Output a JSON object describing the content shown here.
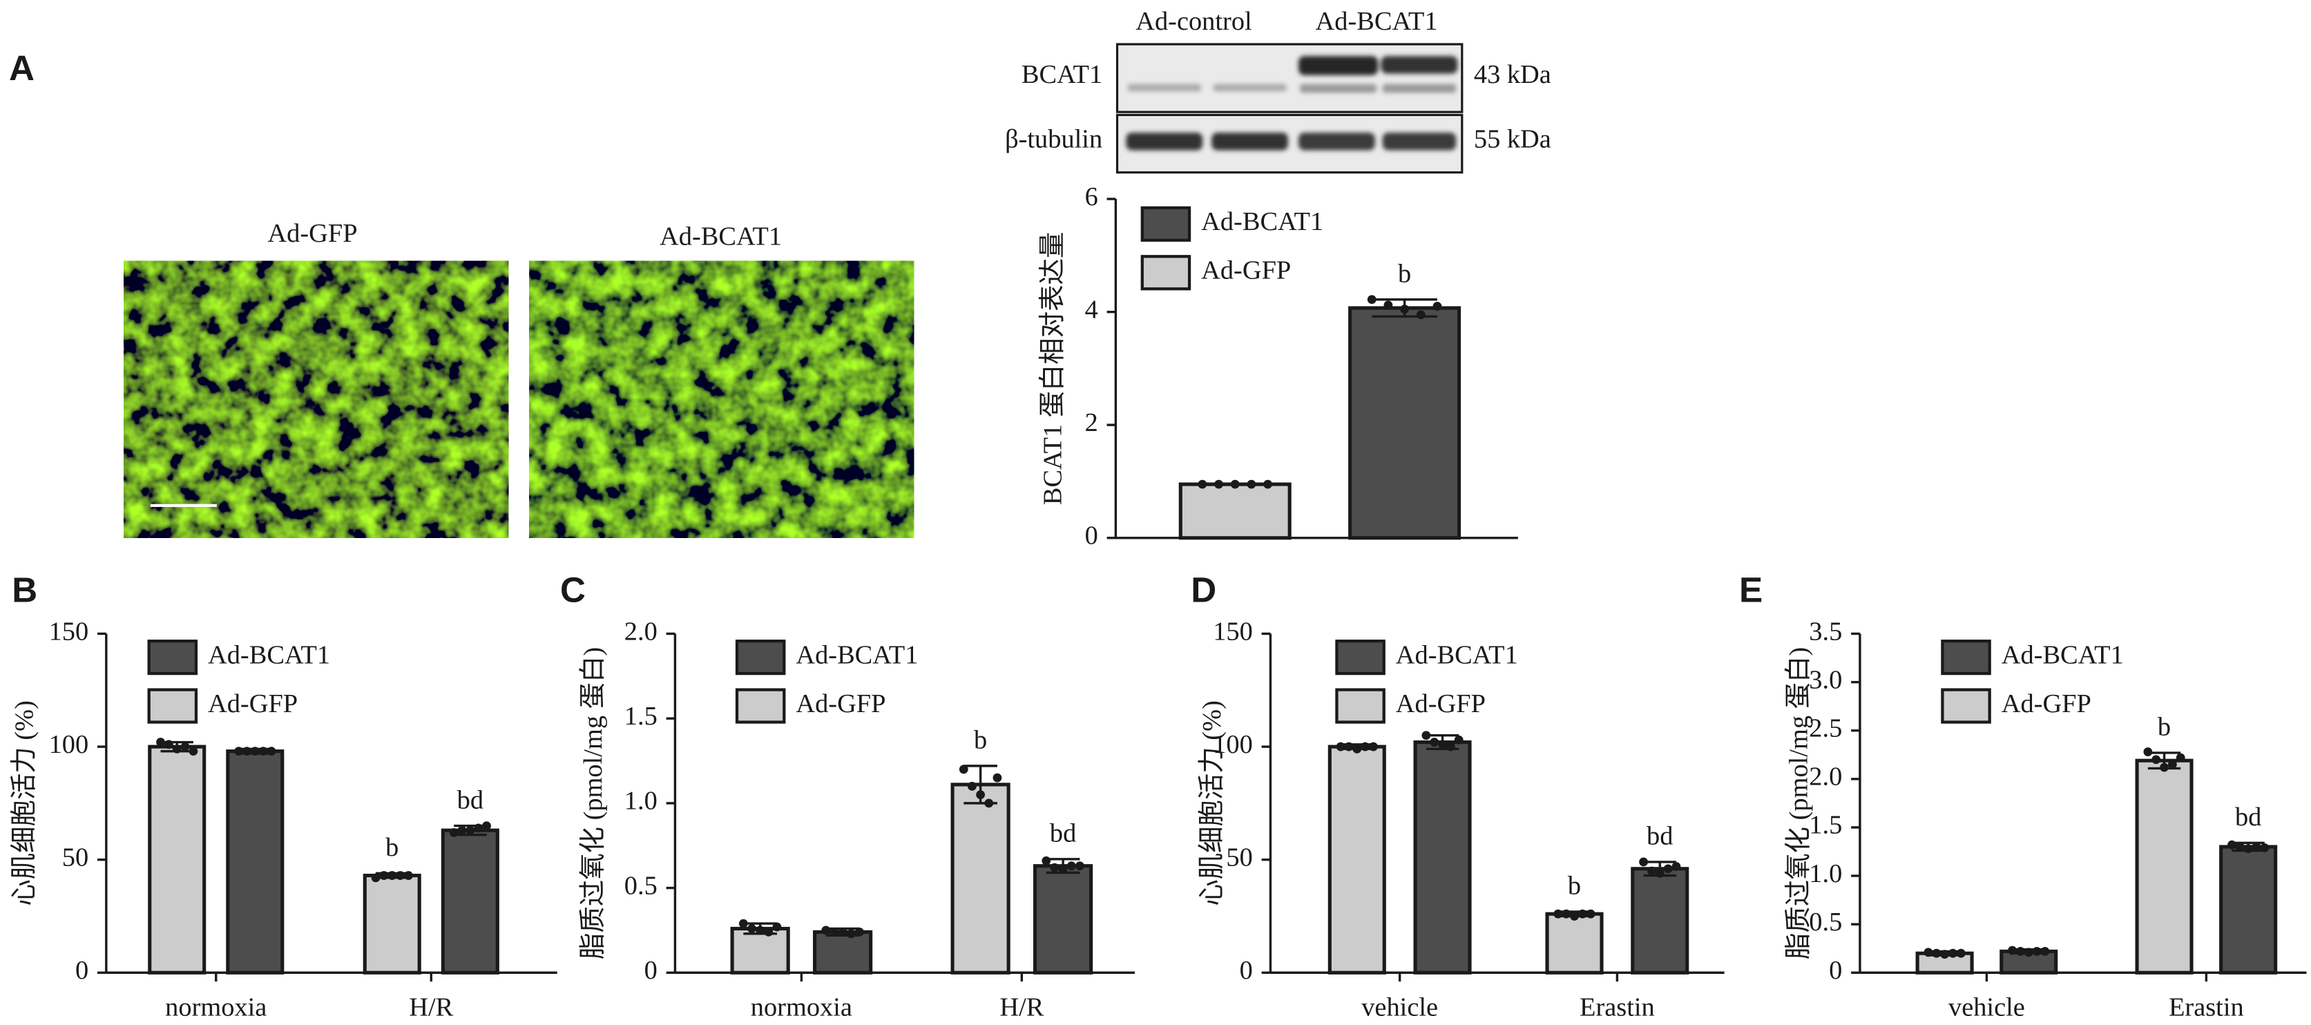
{
  "panel_a": {
    "label": "A",
    "images": [
      {
        "title": "Ad-GFP"
      },
      {
        "title": "Ad-BCAT1"
      }
    ],
    "blot": {
      "groups": [
        "Ad-control",
        "Ad-BCAT1"
      ],
      "rows": [
        {
          "protein": "BCAT1",
          "size": "43 kDa"
        },
        {
          "protein": "β-tubulin",
          "size": "55 kDa"
        }
      ]
    }
  },
  "chart_data": [
    {
      "type": "bar",
      "ylabel": "BCAT1 蛋白相对表达量",
      "categories": [
        null,
        null
      ],
      "ylim": [
        0,
        6
      ],
      "yticks": [
        0,
        2,
        4,
        6
      ],
      "legend": "upper left",
      "series": [
        {
          "name": "Ad-BCAT1",
          "color": "#4d4d4d",
          "values": [
            null,
            4.07
          ],
          "errors": [
            null,
            0.15
          ],
          "points": [
            null,
            [
              4.22,
              4.12,
              4.05,
              3.95,
              4.1
            ]
          ],
          "significance": [
            null,
            "b"
          ]
        },
        {
          "name": "Ad-GFP",
          "color": "#cccccc",
          "values": [
            0.95,
            null
          ],
          "errors": [
            0.01,
            null
          ],
          "points": [
            [
              0.95,
              0.95,
              0.95,
              0.95,
              0.95
            ],
            null
          ],
          "significance": [
            null,
            null
          ]
        }
      ]
    },
    {
      "type": "bar",
      "panel": "B",
      "ylabel": "心肌细胞活力 (%)",
      "categories": [
        "normoxia",
        "H/R"
      ],
      "ylim": [
        0,
        150
      ],
      "yticks": [
        0,
        50,
        100,
        150
      ],
      "legend": "upper left",
      "series": [
        {
          "name": "Ad-BCAT1",
          "color": "#4d4d4d",
          "values": [
            98,
            63
          ],
          "errors": [
            1,
            2
          ],
          "points": [
            [
              98,
              98,
              98,
              98,
              98
            ],
            [
              62,
              63,
              63,
              64,
              65
            ]
          ],
          "significance": [
            null,
            "bd"
          ]
        },
        {
          "name": "Ad-GFP",
          "color": "#cccccc",
          "values": [
            100,
            43
          ],
          "errors": [
            2,
            1
          ],
          "points": [
            [
              102,
              101,
              99,
              100,
              98
            ],
            [
              42,
              43,
              43,
              43,
              43
            ]
          ],
          "significance": [
            null,
            "b"
          ]
        }
      ]
    },
    {
      "type": "bar",
      "panel": "C",
      "ylabel": "脂质过氧化 (pmol/mg 蛋白)",
      "categories": [
        "normoxia",
        "H/R"
      ],
      "ylim": [
        0,
        2
      ],
      "yticks": [
        0,
        0.5,
        {
          "value": 1,
          "label": "1.0"
        },
        1.5,
        {
          "value": 2,
          "label": "2.0"
        }
      ],
      "legend": "upper left",
      "series": [
        {
          "name": "Ad-BCAT1",
          "color": "#4d4d4d",
          "values": [
            0.24,
            0.63
          ],
          "errors": [
            0.02,
            0.04
          ],
          "points": [
            [
              0.25,
              0.24,
              0.24,
              0.23,
              0.24
            ],
            [
              0.66,
              0.62,
              0.61,
              0.63,
              0.63
            ]
          ],
          "significance": [
            null,
            "bd"
          ]
        },
        {
          "name": "Ad-GFP",
          "color": "#cccccc",
          "values": [
            0.26,
            1.11
          ],
          "errors": [
            0.03,
            0.11
          ],
          "points": [
            [
              0.29,
              0.26,
              0.25,
              0.24,
              0.27
            ],
            [
              1.2,
              1.1,
              1.05,
              1.0,
              1.15
            ]
          ],
          "significance": [
            null,
            "b"
          ]
        }
      ]
    },
    {
      "type": "bar",
      "panel": "D",
      "ylabel": "心肌细胞活力 (%)",
      "categories": [
        "vehicle",
        "Erastin"
      ],
      "ylim": [
        0,
        150
      ],
      "yticks": [
        0,
        50,
        100,
        150
      ],
      "legend": "upper left",
      "series": [
        {
          "name": "Ad-BCAT1",
          "color": "#4d4d4d",
          "values": [
            102,
            46
          ],
          "errors": [
            3,
            3
          ],
          "points": [
            [
              105,
              102,
              101,
              100,
              103
            ],
            [
              49,
              45,
              44,
              46,
              47
            ]
          ],
          "significance": [
            null,
            "bd"
          ]
        },
        {
          "name": "Ad-GFP",
          "color": "#cccccc",
          "values": [
            100,
            26
          ],
          "errors": [
            1,
            1
          ],
          "points": [
            [
              100,
              100,
              99,
              100,
              100
            ],
            [
              26,
              26,
              25,
              26,
              26
            ]
          ],
          "significance": [
            null,
            "b"
          ]
        }
      ]
    },
    {
      "type": "bar",
      "panel": "E",
      "ylabel": "脂质过氧化 (pmol/mg 蛋白)",
      "categories": [
        "vehicle",
        "Erastin"
      ],
      "ylim": [
        0,
        3.5
      ],
      "yticks": [
        0,
        0.5,
        {
          "value": 1,
          "label": "1.0"
        },
        1.5,
        {
          "value": 2,
          "label": "2.0"
        },
        2.5,
        {
          "value": 3,
          "label": "3.0"
        },
        3.5
      ],
      "legend": "upper left",
      "series": [
        {
          "name": "Ad-BCAT1",
          "color": "#4d4d4d",
          "values": [
            0.22,
            1.3
          ],
          "errors": [
            0.02,
            0.04
          ],
          "points": [
            [
              0.23,
              0.22,
              0.21,
              0.22,
              0.22
            ],
            [
              1.32,
              1.3,
              1.28,
              1.3,
              1.29
            ]
          ],
          "significance": [
            null,
            "bd"
          ]
        },
        {
          "name": "Ad-GFP",
          "color": "#cccccc",
          "values": [
            0.2,
            2.19
          ],
          "errors": [
            0.02,
            0.08
          ],
          "points": [
            [
              0.21,
              0.2,
              0.19,
              0.2,
              0.2
            ],
            [
              2.28,
              2.2,
              2.12,
              2.15,
              2.22
            ]
          ],
          "significance": [
            null,
            "b"
          ]
        }
      ]
    }
  ]
}
